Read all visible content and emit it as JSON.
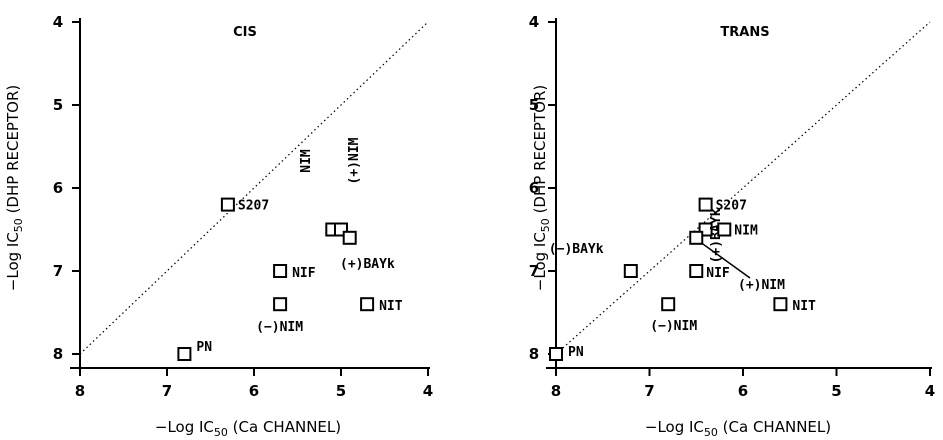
{
  "chart_data": [
    {
      "type": "scatter",
      "title": "CIS",
      "xlabel": {
        "pre": "−Log IC",
        "sub": "50",
        "post": " (Ca CHANNEL)"
      },
      "ylabel": {
        "pre": "−Log IC",
        "sub": "50",
        "post": " (DHP RECEPTOR)"
      },
      "xlim": [
        8,
        4
      ],
      "ylim": [
        8,
        4
      ],
      "x_ticks": [
        "8",
        "7",
        "6",
        "5",
        "4"
      ],
      "y_ticks": [
        "4",
        "5",
        "6",
        "7",
        "8"
      ],
      "identity_line": true,
      "points": [
        {
          "label": "S207",
          "x": 6.3,
          "y": 6.2
        },
        {
          "label": "NIM",
          "x": 5.1,
          "y": 6.5
        },
        {
          "label": "(+)NIM",
          "x": 5.0,
          "y": 6.5
        },
        {
          "label": "(+)BAYk",
          "x": 4.9,
          "y": 6.6
        },
        {
          "label": "NIF",
          "x": 5.7,
          "y": 7.0
        },
        {
          "label": "(−)NIM",
          "x": 5.7,
          "y": 7.4
        },
        {
          "label": "NIT",
          "x": 4.7,
          "y": 7.4
        },
        {
          "label": "PN",
          "x": 6.8,
          "y": 8.0
        }
      ]
    },
    {
      "type": "scatter",
      "title": "TRANS",
      "xlabel": {
        "pre": "−Log IC",
        "sub": "50",
        "post": " (Ca CHANNEL)"
      },
      "ylabel": {
        "pre": "−Log IC",
        "sub": "50",
        "post": " (DHP RECEPTOR)"
      },
      "xlim": [
        8,
        4
      ],
      "ylim": [
        8,
        4
      ],
      "x_ticks": [
        "8",
        "7",
        "6",
        "5",
        "4"
      ],
      "y_ticks": [
        "4",
        "5",
        "6",
        "7",
        "8"
      ],
      "identity_line": true,
      "points": [
        {
          "label": "S207",
          "x": 6.4,
          "y": 6.2
        },
        {
          "label": "(+)BAYk",
          "x": 6.4,
          "y": 6.5
        },
        {
          "label": "NIM",
          "x": 6.2,
          "y": 6.5
        },
        {
          "label": "(+)NIM",
          "x": 6.5,
          "y": 6.6
        },
        {
          "label": "(−)BAYk",
          "x": 7.2,
          "y": 7.0
        },
        {
          "label": "NIF",
          "x": 6.5,
          "y": 7.0
        },
        {
          "label": "(−)NIM",
          "x": 6.8,
          "y": 7.4
        },
        {
          "label": "NIT",
          "x": 5.6,
          "y": 7.4
        },
        {
          "label": "PN",
          "x": 8.0,
          "y": 8.0
        }
      ]
    }
  ]
}
